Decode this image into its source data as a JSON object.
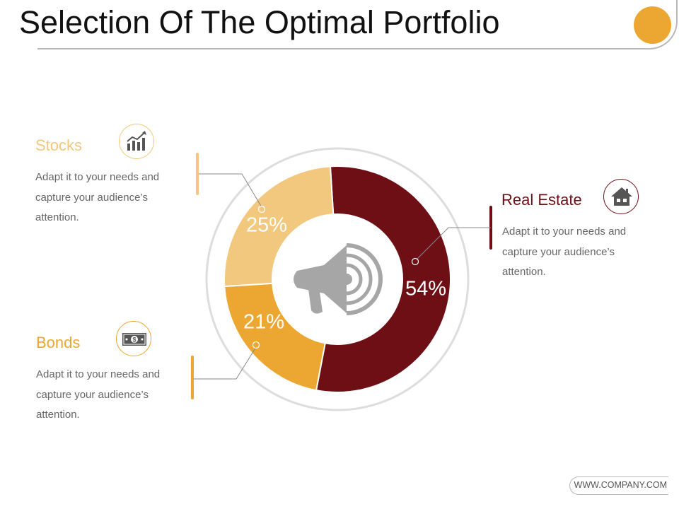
{
  "slide": {
    "title": "Selection Of The Optimal Portfolio",
    "footer": "WWW.COMPANY.COM"
  },
  "colors": {
    "stocks": "#f2c77e",
    "bonds": "#eba731",
    "real_estate": "#6e0f16",
    "ring": "#dddddd",
    "accent_dot": "#eba731",
    "center_icon": "#a6a6a6"
  },
  "categories": {
    "stocks": {
      "title": "Stocks",
      "desc": "Adapt it to your needs and capture your audience’s attention.",
      "icon": "bar-chart-growth-icon"
    },
    "bonds": {
      "title": "Bonds",
      "desc": "Adapt it to your needs and capture your audience’s attention.",
      "icon": "dollar-bill-icon"
    },
    "real_estate": {
      "title": "Real Estate",
      "desc": "Adapt it to your needs and capture your audience’s attention.",
      "icon": "house-icon"
    }
  },
  "chart_data": {
    "type": "pie",
    "donut": true,
    "title": "",
    "slices": [
      {
        "label": "Real Estate",
        "value": 54,
        "display": "54%",
        "color": "#6e0f16"
      },
      {
        "label": "Bonds",
        "value": 21,
        "display": "21%",
        "color": "#eba731"
      },
      {
        "label": "Stocks",
        "value": 25,
        "display": "25%",
        "color": "#f2c77e"
      }
    ],
    "center_icon": "megaphone-icon"
  }
}
